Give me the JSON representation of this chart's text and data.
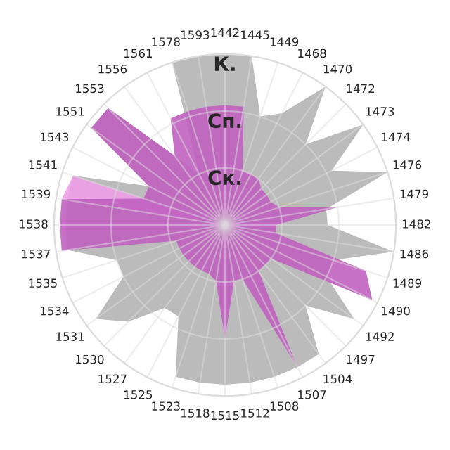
{
  "chart_data": {
    "type": "radar",
    "categories": [
      "1442",
      "1445",
      "1449",
      "1468",
      "1470",
      "1472",
      "1473",
      "1474",
      "1476",
      "1479",
      "1482",
      "1486",
      "1489",
      "1490",
      "1492",
      "1497",
      "1504",
      "1507",
      "1508",
      "1512",
      "1515",
      "1518",
      "1523",
      "1525",
      "1527",
      "1530",
      "1531",
      "1534",
      "1535",
      "1537",
      "1538",
      "1539",
      "1541",
      "1543",
      "1551",
      "1553",
      "1556",
      "1561",
      "1578",
      "1593"
    ],
    "series": [
      {
        "color": "#b4b4b4",
        "values": [
          3,
          3,
          2.0,
          2.2,
          3,
          2.0,
          3,
          2.1,
          3,
          1.8,
          1.8,
          3,
          2.0,
          2.0,
          2.8,
          2.0,
          2.8,
          2.8,
          2.8,
          2.8,
          2.8,
          2.8,
          2.8,
          1.8,
          1.8,
          2.4,
          2.8,
          2.0,
          2.0,
          2.8,
          2.8,
          2.8,
          2.8,
          1.5,
          2.9,
          2.9,
          1.5,
          1.0,
          3,
          3
        ]
      },
      {
        "color": "#f09ee8",
        "values": [
          0,
          0,
          0,
          0,
          0,
          0,
          0,
          0,
          0,
          0,
          0,
          0,
          0,
          0,
          0,
          0,
          0,
          0,
          0,
          0,
          0,
          0,
          0,
          0,
          0,
          0,
          0,
          0,
          0,
          0,
          0,
          2.9,
          2.8,
          0,
          0,
          0,
          0,
          0,
          0,
          0
        ]
      },
      {
        "color": "#c060c0",
        "values": [
          2.1,
          2.1,
          1.0,
          1.0,
          1.0,
          0.9,
          0.9,
          0.9,
          1.0,
          2.0,
          0.9,
          0.9,
          2.6,
          2.9,
          1.0,
          1.0,
          1.0,
          2.8,
          1.0,
          1.0,
          2.0,
          1.0,
          0.9,
          0.9,
          0.9,
          0.9,
          0.9,
          0.9,
          0.9,
          2.9,
          2.9,
          2.9,
          1.5,
          1.5,
          2.9,
          2.9,
          1.5,
          2.1,
          2.1,
          2.1
        ]
      }
    ],
    "ylim": [
      0,
      3
    ],
    "yticks": [
      {
        "value": 1,
        "label": "Ск."
      },
      {
        "value": 2,
        "label": "Сп."
      },
      {
        "value": 3,
        "label": "К."
      }
    ],
    "grid": true
  }
}
